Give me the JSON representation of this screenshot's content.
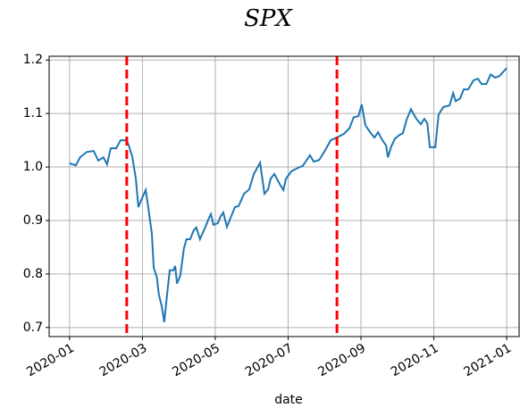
{
  "chart_data": {
    "type": "line",
    "title": "SPX",
    "x_label": "date",
    "x": [
      0,
      0.17,
      0.29,
      0.47,
      0.66,
      0.79,
      0.93,
      1.03,
      1.13,
      1.28,
      1.4,
      1.57,
      1.64,
      1.72,
      1.82,
      1.89,
      1.96,
      2.09,
      2.16,
      2.26,
      2.31,
      2.4,
      2.45,
      2.53,
      2.6,
      2.67,
      2.75,
      2.85,
      2.9,
      2.95,
      3.04,
      3.14,
      3.21,
      3.31,
      3.41,
      3.48,
      3.58,
      3.71,
      3.83,
      3.88,
      3.95,
      4.07,
      4.15,
      4.22,
      4.32,
      4.42,
      4.54,
      4.64,
      4.79,
      4.93,
      5.06,
      5.23,
      5.35,
      5.45,
      5.52,
      5.62,
      5.77,
      5.87,
      5.94,
      6.09,
      6.26,
      6.4,
      6.5,
      6.6,
      6.7,
      6.85,
      6.99,
      7.17,
      7.34,
      7.53,
      7.68,
      7.8,
      7.93,
      8.02,
      8.12,
      8.25,
      8.37,
      8.47,
      8.56,
      8.69,
      8.74,
      8.83,
      8.93,
      9.06,
      9.15,
      9.25,
      9.37,
      9.52,
      9.64,
      9.74,
      9.82,
      9.89,
      10.04,
      10.13,
      10.26,
      10.43,
      10.53,
      10.6,
      10.72,
      10.82,
      10.94,
      11.09,
      11.21,
      11.31,
      11.44,
      11.56,
      11.68,
      11.8,
      12.0
    ],
    "series": [
      {
        "color": "#1f77b4",
        "values": [
          1.007,
          1.003,
          1.018,
          1.028,
          1.03,
          1.012,
          1.018,
          1.005,
          1.035,
          1.035,
          1.05,
          1.05,
          1.037,
          1.02,
          0.978,
          0.925,
          0.937,
          0.957,
          0.925,
          0.875,
          0.812,
          0.793,
          0.762,
          0.74,
          0.71,
          0.757,
          0.807,
          0.807,
          0.815,
          0.782,
          0.797,
          0.848,
          0.865,
          0.865,
          0.882,
          0.887,
          0.865,
          0.885,
          0.905,
          0.912,
          0.892,
          0.895,
          0.908,
          0.915,
          0.888,
          0.905,
          0.925,
          0.927,
          0.95,
          0.958,
          0.987,
          1.008,
          0.95,
          0.958,
          0.978,
          0.987,
          0.968,
          0.957,
          0.978,
          0.992,
          0.998,
          1.002,
          1.012,
          1.022,
          1.01,
          1.013,
          1.028,
          1.05,
          1.055,
          1.062,
          1.072,
          1.093,
          1.095,
          1.117,
          1.078,
          1.065,
          1.055,
          1.065,
          1.053,
          1.04,
          1.018,
          1.038,
          1.053,
          1.06,
          1.063,
          1.088,
          1.108,
          1.09,
          1.08,
          1.09,
          1.082,
          1.037,
          1.037,
          1.098,
          1.112,
          1.115,
          1.138,
          1.123,
          1.128,
          1.145,
          1.145,
          1.162,
          1.165,
          1.155,
          1.155,
          1.173,
          1.167,
          1.17,
          1.185
        ]
      }
    ],
    "vlines": [
      1.57,
      7.34
    ],
    "vline_color": "#ff0000",
    "xlim": [
      -0.56,
      12.34
    ],
    "xticks": [
      {
        "value": 0,
        "label": "2020-01"
      },
      {
        "value": 2,
        "label": "2020-03"
      },
      {
        "value": 4,
        "label": "2020-05"
      },
      {
        "value": 6,
        "label": "2020-07"
      },
      {
        "value": 8,
        "label": "2020-09"
      },
      {
        "value": 10,
        "label": "2020-11"
      },
      {
        "value": 12,
        "label": "2021-01"
      }
    ],
    "ylim": [
      0.683,
      1.207
    ],
    "yticks": [
      0.7,
      0.8,
      0.9,
      1.0,
      1.1,
      1.2
    ],
    "ytick_labels": [
      "0.7",
      "0.8",
      "0.9",
      "1.0",
      "1.1",
      "1.2"
    ],
    "grid": true
  }
}
